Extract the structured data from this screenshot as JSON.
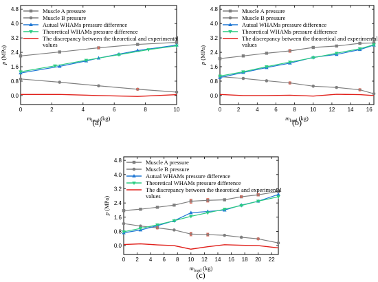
{
  "colors": {
    "muscle_a": "#7f7f7f",
    "muscle_b": "#7f7f7f",
    "actual": "#1f77d4",
    "theoretical": "#2bcc82",
    "discrepancy": "#e0201b",
    "errorbar": "#e36a5a"
  },
  "chart_data": [
    {
      "type": "line",
      "panel_label": "(a)",
      "xlabel": "m_load (kg)",
      "ylabel": "p (MPa)",
      "xlim": [
        0,
        10
      ],
      "ylim": [
        -0.5,
        5.0
      ],
      "xticks": [
        0,
        2,
        4,
        6,
        8,
        10
      ],
      "yticks": [
        0.0,
        0.8,
        1.6,
        2.4,
        3.2,
        4.0,
        4.8
      ],
      "legend_position": "top-left",
      "series": [
        {
          "name": "Muscle A pressure",
          "key": "muscle_a",
          "marker": "square",
          "x": [
            0,
            2.5,
            5,
            7.5,
            10
          ],
          "y": [
            2.2,
            2.42,
            2.65,
            2.84,
            2.95
          ]
        },
        {
          "name": "Muscle B pressure",
          "key": "muscle_b",
          "marker": "circle",
          "x": [
            0,
            2.5,
            5,
            7.5,
            10
          ],
          "y": [
            0.92,
            0.74,
            0.54,
            0.35,
            0.19
          ]
        },
        {
          "name": "Autual WHAMs pressure difference",
          "key": "actual",
          "marker": "triangle-up",
          "x": [
            0,
            2.5,
            4.2,
            5,
            6.3,
            7.5,
            10
          ],
          "y": [
            1.25,
            1.62,
            1.92,
            2.08,
            2.3,
            2.5,
            2.8
          ]
        },
        {
          "name": "Theoretical WHAMs pressure difference",
          "key": "theoretical",
          "marker": "triangle-down",
          "x": [
            0,
            2.2,
            4.2,
            6.3,
            8.2,
            10
          ],
          "y": [
            1.32,
            1.65,
            1.96,
            2.27,
            2.55,
            2.76
          ]
        },
        {
          "name": "The discrepancy between the theoretical and experimental values",
          "key": "discrepancy",
          "marker": "none",
          "x": [
            0,
            2.5,
            5,
            7.5,
            10
          ],
          "y": [
            0.06,
            0.06,
            0.0,
            -0.05,
            0.05
          ]
        }
      ],
      "errorbars": [
        {
          "series": "muscle_a",
          "x": 5,
          "y": 2.65,
          "err": 0.05
        },
        {
          "series": "muscle_b",
          "x": 7.5,
          "y": 0.35,
          "err": 0.05
        }
      ]
    },
    {
      "type": "line",
      "panel_label": "(b)",
      "xlabel": "m_load (kg)",
      "ylabel": "p (MPa)",
      "xlim": [
        0,
        16.5
      ],
      "ylim": [
        -0.5,
        5.0
      ],
      "xticks": [
        0,
        2,
        4,
        6,
        8,
        10,
        12,
        14,
        16
      ],
      "yticks": [
        0.0,
        0.8,
        1.6,
        2.4,
        3.2,
        4.0,
        4.8
      ],
      "legend_position": "top-left",
      "series": [
        {
          "name": "Muscle A pressure",
          "key": "muscle_a",
          "marker": "square",
          "x": [
            0,
            2.5,
            5,
            7.5,
            10,
            12.5,
            15,
            16.5
          ],
          "y": [
            2.05,
            2.2,
            2.35,
            2.48,
            2.67,
            2.75,
            2.9,
            2.92
          ]
        },
        {
          "name": "Muscle B pressure",
          "key": "muscle_b",
          "marker": "circle",
          "x": [
            0,
            2.5,
            5,
            7.5,
            10,
            12.5,
            15,
            16.5
          ],
          "y": [
            1.05,
            0.95,
            0.82,
            0.7,
            0.52,
            0.45,
            0.32,
            0.1
          ]
        },
        {
          "name": "Autual WHAMs pressure difference",
          "key": "actual",
          "marker": "triangle-up",
          "x": [
            0,
            2.5,
            5,
            7.5,
            10,
            12.5,
            15,
            16.5
          ],
          "y": [
            1.0,
            1.28,
            1.55,
            1.8,
            2.12,
            2.28,
            2.55,
            2.8
          ]
        },
        {
          "name": "Theoretical WHAMs pressure difference",
          "key": "theoretical",
          "marker": "triangle-down",
          "x": [
            0,
            2.5,
            5,
            7.5,
            10,
            12.5,
            15,
            16.5
          ],
          "y": [
            1.08,
            1.32,
            1.6,
            1.86,
            2.1,
            2.35,
            2.6,
            2.82
          ]
        },
        {
          "name": "The discrepancy between the theoretical and experimental values",
          "key": "discrepancy",
          "marker": "none",
          "x": [
            0,
            2.5,
            5,
            7.5,
            10,
            12.5,
            15,
            16.5
          ],
          "y": [
            0.06,
            0.0,
            0.0,
            0.02,
            -0.03,
            0.07,
            0.05,
            0.0
          ]
        }
      ],
      "errorbars": [
        {
          "series": "muscle_a",
          "x": 7.5,
          "y": 2.48,
          "err": 0.08
        },
        {
          "series": "muscle_b",
          "x": 7.5,
          "y": 0.7,
          "err": 0.06
        },
        {
          "series": "muscle_b",
          "x": 15,
          "y": 0.32,
          "err": 0.06
        }
      ]
    },
    {
      "type": "line",
      "panel_label": "(c)",
      "xlabel": "m_load (kg)",
      "ylabel": "p (MPa)",
      "xlim": [
        0,
        23
      ],
      "ylim": [
        -0.5,
        5.0
      ],
      "xticks": [
        0,
        2,
        4,
        6,
        8,
        10,
        12,
        14,
        16,
        18,
        20,
        22
      ],
      "yticks": [
        0.0,
        0.8,
        1.6,
        2.4,
        3.2,
        4.0,
        4.8
      ],
      "legend_position": "top-left",
      "series": [
        {
          "name": "Muscle A pressure",
          "key": "muscle_a",
          "marker": "square",
          "x": [
            0,
            2.5,
            5,
            7.5,
            10,
            12.5,
            15,
            17.5,
            20,
            23
          ],
          "y": [
            1.97,
            2.05,
            2.16,
            2.28,
            2.5,
            2.55,
            2.58,
            2.75,
            2.86,
            3.05
          ]
        },
        {
          "name": "Muscle B pressure",
          "key": "muscle_b",
          "marker": "circle",
          "x": [
            0,
            2.5,
            5,
            7.5,
            10,
            12.5,
            15,
            17.5,
            20,
            23
          ],
          "y": [
            1.24,
            1.1,
            1.0,
            0.88,
            0.65,
            0.62,
            0.58,
            0.47,
            0.38,
            0.15
          ]
        },
        {
          "name": "Autual WHAMs pressure difference",
          "key": "actual",
          "marker": "triangle-up",
          "x": [
            0,
            2.5,
            5,
            7.5,
            10,
            12.5,
            15,
            17.5,
            20,
            23
          ],
          "y": [
            0.72,
            0.88,
            1.12,
            1.4,
            1.85,
            1.92,
            2.0,
            2.28,
            2.5,
            2.88
          ]
        },
        {
          "name": "Theoretical WHAMs pressure difference",
          "key": "theoretical",
          "marker": "triangle-down",
          "x": [
            0,
            2.5,
            5,
            7.5,
            10,
            12.5,
            15,
            17.5,
            20,
            23
          ],
          "y": [
            0.78,
            0.97,
            1.17,
            1.4,
            1.65,
            1.85,
            2.05,
            2.26,
            2.5,
            2.75
          ]
        },
        {
          "name": "The discrepancy between the theoretical and experimental values",
          "key": "discrepancy",
          "marker": "none",
          "x": [
            0,
            2.5,
            5,
            7.5,
            10,
            12.5,
            15,
            17.5,
            20,
            23
          ],
          "y": [
            0.06,
            0.1,
            0.04,
            0.0,
            -0.2,
            -0.06,
            0.05,
            0.02,
            0.0,
            -0.13
          ]
        }
      ],
      "errorbars": [
        {
          "series": "muscle_a",
          "x": 10,
          "y": 2.5,
          "err": 0.12
        },
        {
          "series": "muscle_a",
          "x": 12.5,
          "y": 2.55,
          "err": 0.1
        },
        {
          "series": "muscle_a",
          "x": 17.5,
          "y": 2.75,
          "err": 0.05
        },
        {
          "series": "muscle_a",
          "x": 20,
          "y": 2.86,
          "err": 0.06
        },
        {
          "series": "muscle_b",
          "x": 5,
          "y": 1.0,
          "err": 0.06
        },
        {
          "series": "muscle_b",
          "x": 10,
          "y": 0.65,
          "err": 0.1
        },
        {
          "series": "muscle_b",
          "x": 12.5,
          "y": 0.62,
          "err": 0.08
        },
        {
          "series": "muscle_b",
          "x": 20,
          "y": 0.38,
          "err": 0.05
        }
      ]
    }
  ]
}
